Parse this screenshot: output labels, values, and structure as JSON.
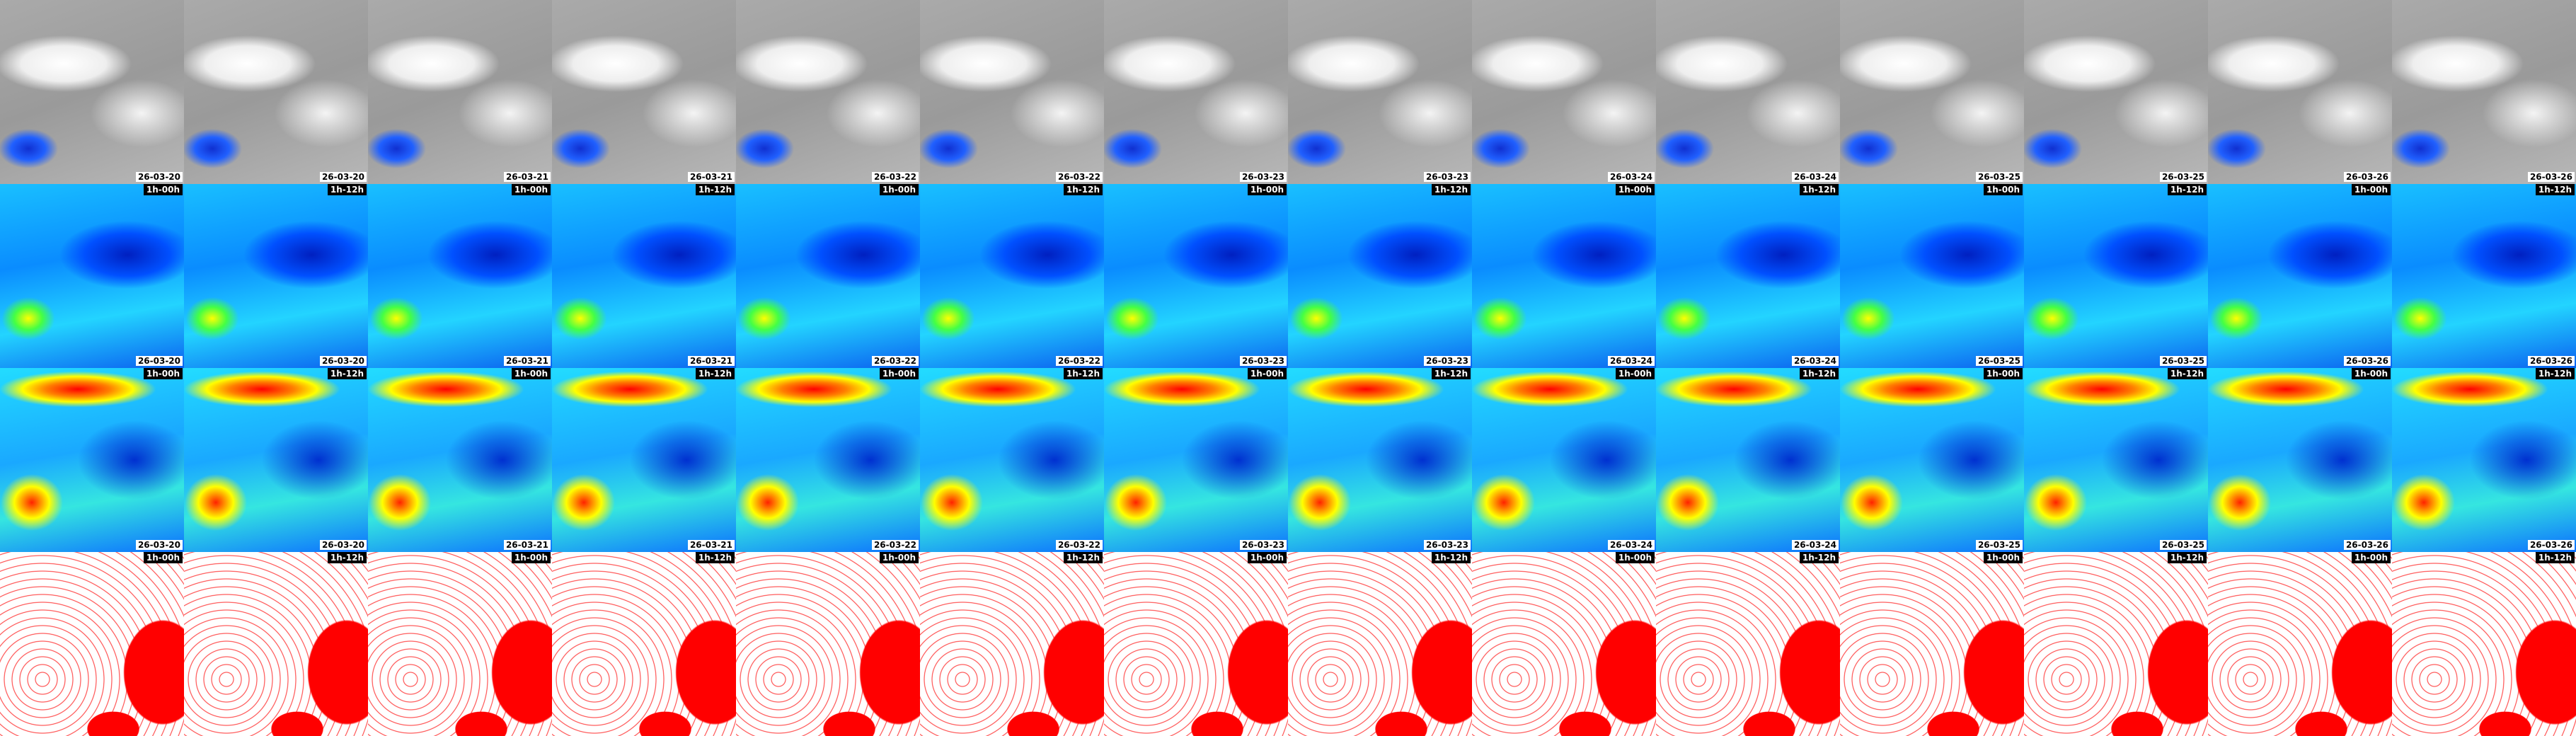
{
  "columns": [
    {
      "date": "26-03-20",
      "time": "1h-00h"
    },
    {
      "date": "26-03-20",
      "time": "1h-12h"
    },
    {
      "date": "26-03-21",
      "time": "1h-00h"
    },
    {
      "date": "26-03-21",
      "time": "1h-12h"
    },
    {
      "date": "26-03-22",
      "time": "1h-00h"
    },
    {
      "date": "26-03-22",
      "time": "1h-12h"
    },
    {
      "date": "26-03-23",
      "time": "1h-00h"
    },
    {
      "date": "26-03-23",
      "time": "1h-12h"
    },
    {
      "date": "26-03-24",
      "time": "1h-00h"
    },
    {
      "date": "26-03-24",
      "time": "1h-12h"
    },
    {
      "date": "26-03-25",
      "time": "1h-00h"
    },
    {
      "date": "26-03-25",
      "time": "1h-12h"
    },
    {
      "date": "26-03-26",
      "time": "1h-00h"
    },
    {
      "date": "26-03-26",
      "time": "1h-12h"
    }
  ]
}
